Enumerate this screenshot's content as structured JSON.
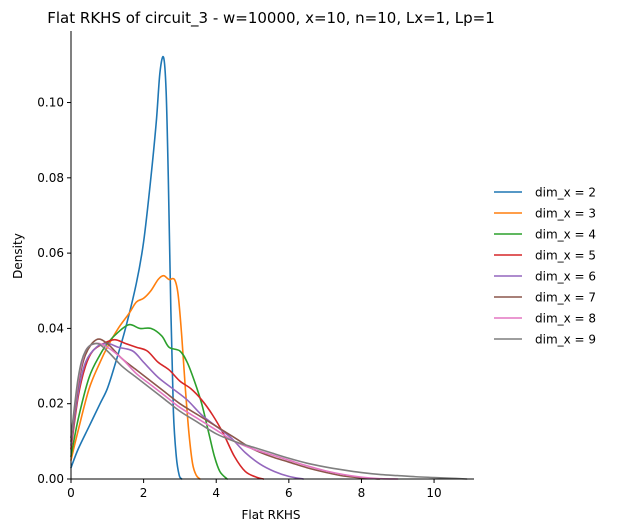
{
  "chart_data": {
    "type": "line",
    "title": "Flat RKHS of circuit_3 - w=10000, x=10, n=10, Lx=1, Lp=1",
    "xlabel": "Flat RKHS",
    "ylabel": "Density",
    "xlim": [
      0,
      11.1
    ],
    "ylim": [
      0,
      0.119
    ],
    "xticks": [
      0,
      2,
      4,
      6,
      8,
      10
    ],
    "yticks": [
      0.0,
      0.02,
      0.04,
      0.06,
      0.08,
      0.1
    ],
    "ytick_labels": [
      "0.00",
      "0.02",
      "0.04",
      "0.06",
      "0.08",
      "0.10"
    ],
    "grid": false,
    "legend": "right",
    "series": [
      {
        "name": "dim_x = 2",
        "color": "#1f77b4",
        "points": [
          [
            0,
            0.003
          ],
          [
            0.2,
            0.008
          ],
          [
            0.5,
            0.014
          ],
          [
            0.8,
            0.02
          ],
          [
            1.0,
            0.024
          ],
          [
            1.2,
            0.03
          ],
          [
            1.5,
            0.04
          ],
          [
            1.8,
            0.052
          ],
          [
            2.0,
            0.063
          ],
          [
            2.2,
            0.08
          ],
          [
            2.35,
            0.095
          ],
          [
            2.45,
            0.108
          ],
          [
            2.55,
            0.112
          ],
          [
            2.62,
            0.103
          ],
          [
            2.68,
            0.08
          ],
          [
            2.75,
            0.045
          ],
          [
            2.82,
            0.018
          ],
          [
            2.9,
            0.006
          ],
          [
            2.98,
            0.001
          ],
          [
            3.05,
            0.0
          ]
        ]
      },
      {
        "name": "dim_x = 3",
        "color": "#ff7f0e",
        "points": [
          [
            0,
            0.005
          ],
          [
            0.2,
            0.013
          ],
          [
            0.5,
            0.024
          ],
          [
            0.8,
            0.031
          ],
          [
            1.0,
            0.035
          ],
          [
            1.3,
            0.04
          ],
          [
            1.6,
            0.044
          ],
          [
            1.8,
            0.047
          ],
          [
            2.0,
            0.048
          ],
          [
            2.2,
            0.05
          ],
          [
            2.4,
            0.053
          ],
          [
            2.55,
            0.054
          ],
          [
            2.7,
            0.053
          ],
          [
            2.85,
            0.053
          ],
          [
            2.95,
            0.049
          ],
          [
            3.05,
            0.038
          ],
          [
            3.15,
            0.024
          ],
          [
            3.25,
            0.012
          ],
          [
            3.35,
            0.004
          ],
          [
            3.45,
            0.001
          ],
          [
            3.55,
            0.0
          ]
        ]
      },
      {
        "name": "dim_x = 4",
        "color": "#2ca02c",
        "points": [
          [
            0,
            0.006
          ],
          [
            0.2,
            0.016
          ],
          [
            0.5,
            0.027
          ],
          [
            0.8,
            0.033
          ],
          [
            1.0,
            0.036
          ],
          [
            1.3,
            0.039
          ],
          [
            1.6,
            0.041
          ],
          [
            1.9,
            0.04
          ],
          [
            2.2,
            0.04
          ],
          [
            2.5,
            0.038
          ],
          [
            2.7,
            0.035
          ],
          [
            3.0,
            0.034
          ],
          [
            3.2,
            0.031
          ],
          [
            3.4,
            0.026
          ],
          [
            3.6,
            0.02
          ],
          [
            3.8,
            0.012
          ],
          [
            3.95,
            0.006
          ],
          [
            4.1,
            0.002
          ],
          [
            4.3,
            0.0
          ]
        ]
      },
      {
        "name": "dim_x = 5",
        "color": "#d62728",
        "points": [
          [
            0,
            0.008
          ],
          [
            0.2,
            0.022
          ],
          [
            0.4,
            0.03
          ],
          [
            0.6,
            0.034
          ],
          [
            0.9,
            0.036
          ],
          [
            1.2,
            0.037
          ],
          [
            1.5,
            0.036
          ],
          [
            1.8,
            0.035
          ],
          [
            2.1,
            0.034
          ],
          [
            2.4,
            0.031
          ],
          [
            2.7,
            0.029
          ],
          [
            3.0,
            0.026
          ],
          [
            3.3,
            0.024
          ],
          [
            3.6,
            0.021
          ],
          [
            3.9,
            0.017
          ],
          [
            4.2,
            0.012
          ],
          [
            4.5,
            0.006
          ],
          [
            4.8,
            0.002
          ],
          [
            5.1,
            0.0005
          ],
          [
            5.3,
            0.0
          ]
        ]
      },
      {
        "name": "dim_x = 6",
        "color": "#9467bd",
        "points": [
          [
            0,
            0.009
          ],
          [
            0.2,
            0.023
          ],
          [
            0.4,
            0.031
          ],
          [
            0.7,
            0.035
          ],
          [
            1.0,
            0.036
          ],
          [
            1.3,
            0.035
          ],
          [
            1.7,
            0.034
          ],
          [
            2.0,
            0.031
          ],
          [
            2.4,
            0.027
          ],
          [
            2.8,
            0.024
          ],
          [
            3.2,
            0.021
          ],
          [
            3.6,
            0.017
          ],
          [
            4.0,
            0.014
          ],
          [
            4.4,
            0.011
          ],
          [
            4.8,
            0.007
          ],
          [
            5.2,
            0.004
          ],
          [
            5.6,
            0.002
          ],
          [
            6.0,
            0.0007
          ],
          [
            6.4,
            0.0
          ]
        ]
      },
      {
        "name": "dim_x = 7",
        "color": "#8c564b",
        "points": [
          [
            0,
            0.01
          ],
          [
            0.2,
            0.025
          ],
          [
            0.4,
            0.033
          ],
          [
            0.7,
            0.037
          ],
          [
            1.0,
            0.036
          ],
          [
            1.4,
            0.032
          ],
          [
            1.8,
            0.029
          ],
          [
            2.2,
            0.026
          ],
          [
            2.6,
            0.023
          ],
          [
            3.0,
            0.02
          ],
          [
            3.5,
            0.017
          ],
          [
            4.0,
            0.014
          ],
          [
            4.5,
            0.011
          ],
          [
            5.0,
            0.008
          ],
          [
            5.5,
            0.006
          ],
          [
            6.0,
            0.0045
          ],
          [
            6.5,
            0.003
          ],
          [
            7.0,
            0.0018
          ],
          [
            7.5,
            0.0008
          ],
          [
            8.0,
            0.0003
          ],
          [
            8.5,
            0.0
          ]
        ]
      },
      {
        "name": "dim_x = 8",
        "color": "#e377c2",
        "points": [
          [
            0,
            0.011
          ],
          [
            0.2,
            0.026
          ],
          [
            0.4,
            0.034
          ],
          [
            0.7,
            0.036
          ],
          [
            1.0,
            0.035
          ],
          [
            1.4,
            0.032
          ],
          [
            1.8,
            0.028
          ],
          [
            2.2,
            0.025
          ],
          [
            2.6,
            0.022
          ],
          [
            3.0,
            0.019
          ],
          [
            3.5,
            0.016
          ],
          [
            4.0,
            0.013
          ],
          [
            4.5,
            0.01
          ],
          [
            5.0,
            0.008
          ],
          [
            5.5,
            0.0065
          ],
          [
            6.0,
            0.005
          ],
          [
            6.5,
            0.0035
          ],
          [
            7.0,
            0.0022
          ],
          [
            7.5,
            0.0012
          ],
          [
            8.0,
            0.0005
          ],
          [
            8.5,
            0.0001
          ],
          [
            9.0,
            0.0
          ]
        ]
      },
      {
        "name": "dim_x = 9",
        "color": "#7f7f7f",
        "points": [
          [
            0,
            0.011
          ],
          [
            0.2,
            0.027
          ],
          [
            0.4,
            0.034
          ],
          [
            0.7,
            0.036
          ],
          [
            1.0,
            0.034
          ],
          [
            1.4,
            0.03
          ],
          [
            1.8,
            0.027
          ],
          [
            2.2,
            0.024
          ],
          [
            2.6,
            0.021
          ],
          [
            3.0,
            0.018
          ],
          [
            3.5,
            0.015
          ],
          [
            4.0,
            0.012
          ],
          [
            4.5,
            0.01
          ],
          [
            5.0,
            0.0085
          ],
          [
            5.5,
            0.007
          ],
          [
            6.0,
            0.0055
          ],
          [
            6.5,
            0.0042
          ],
          [
            7.0,
            0.0032
          ],
          [
            7.5,
            0.0024
          ],
          [
            8.0,
            0.0017
          ],
          [
            8.5,
            0.0012
          ],
          [
            9.0,
            0.0009
          ],
          [
            9.5,
            0.0006
          ],
          [
            10.0,
            0.0004
          ],
          [
            10.5,
            0.0002
          ],
          [
            10.9,
            0.0
          ]
        ]
      }
    ]
  }
}
